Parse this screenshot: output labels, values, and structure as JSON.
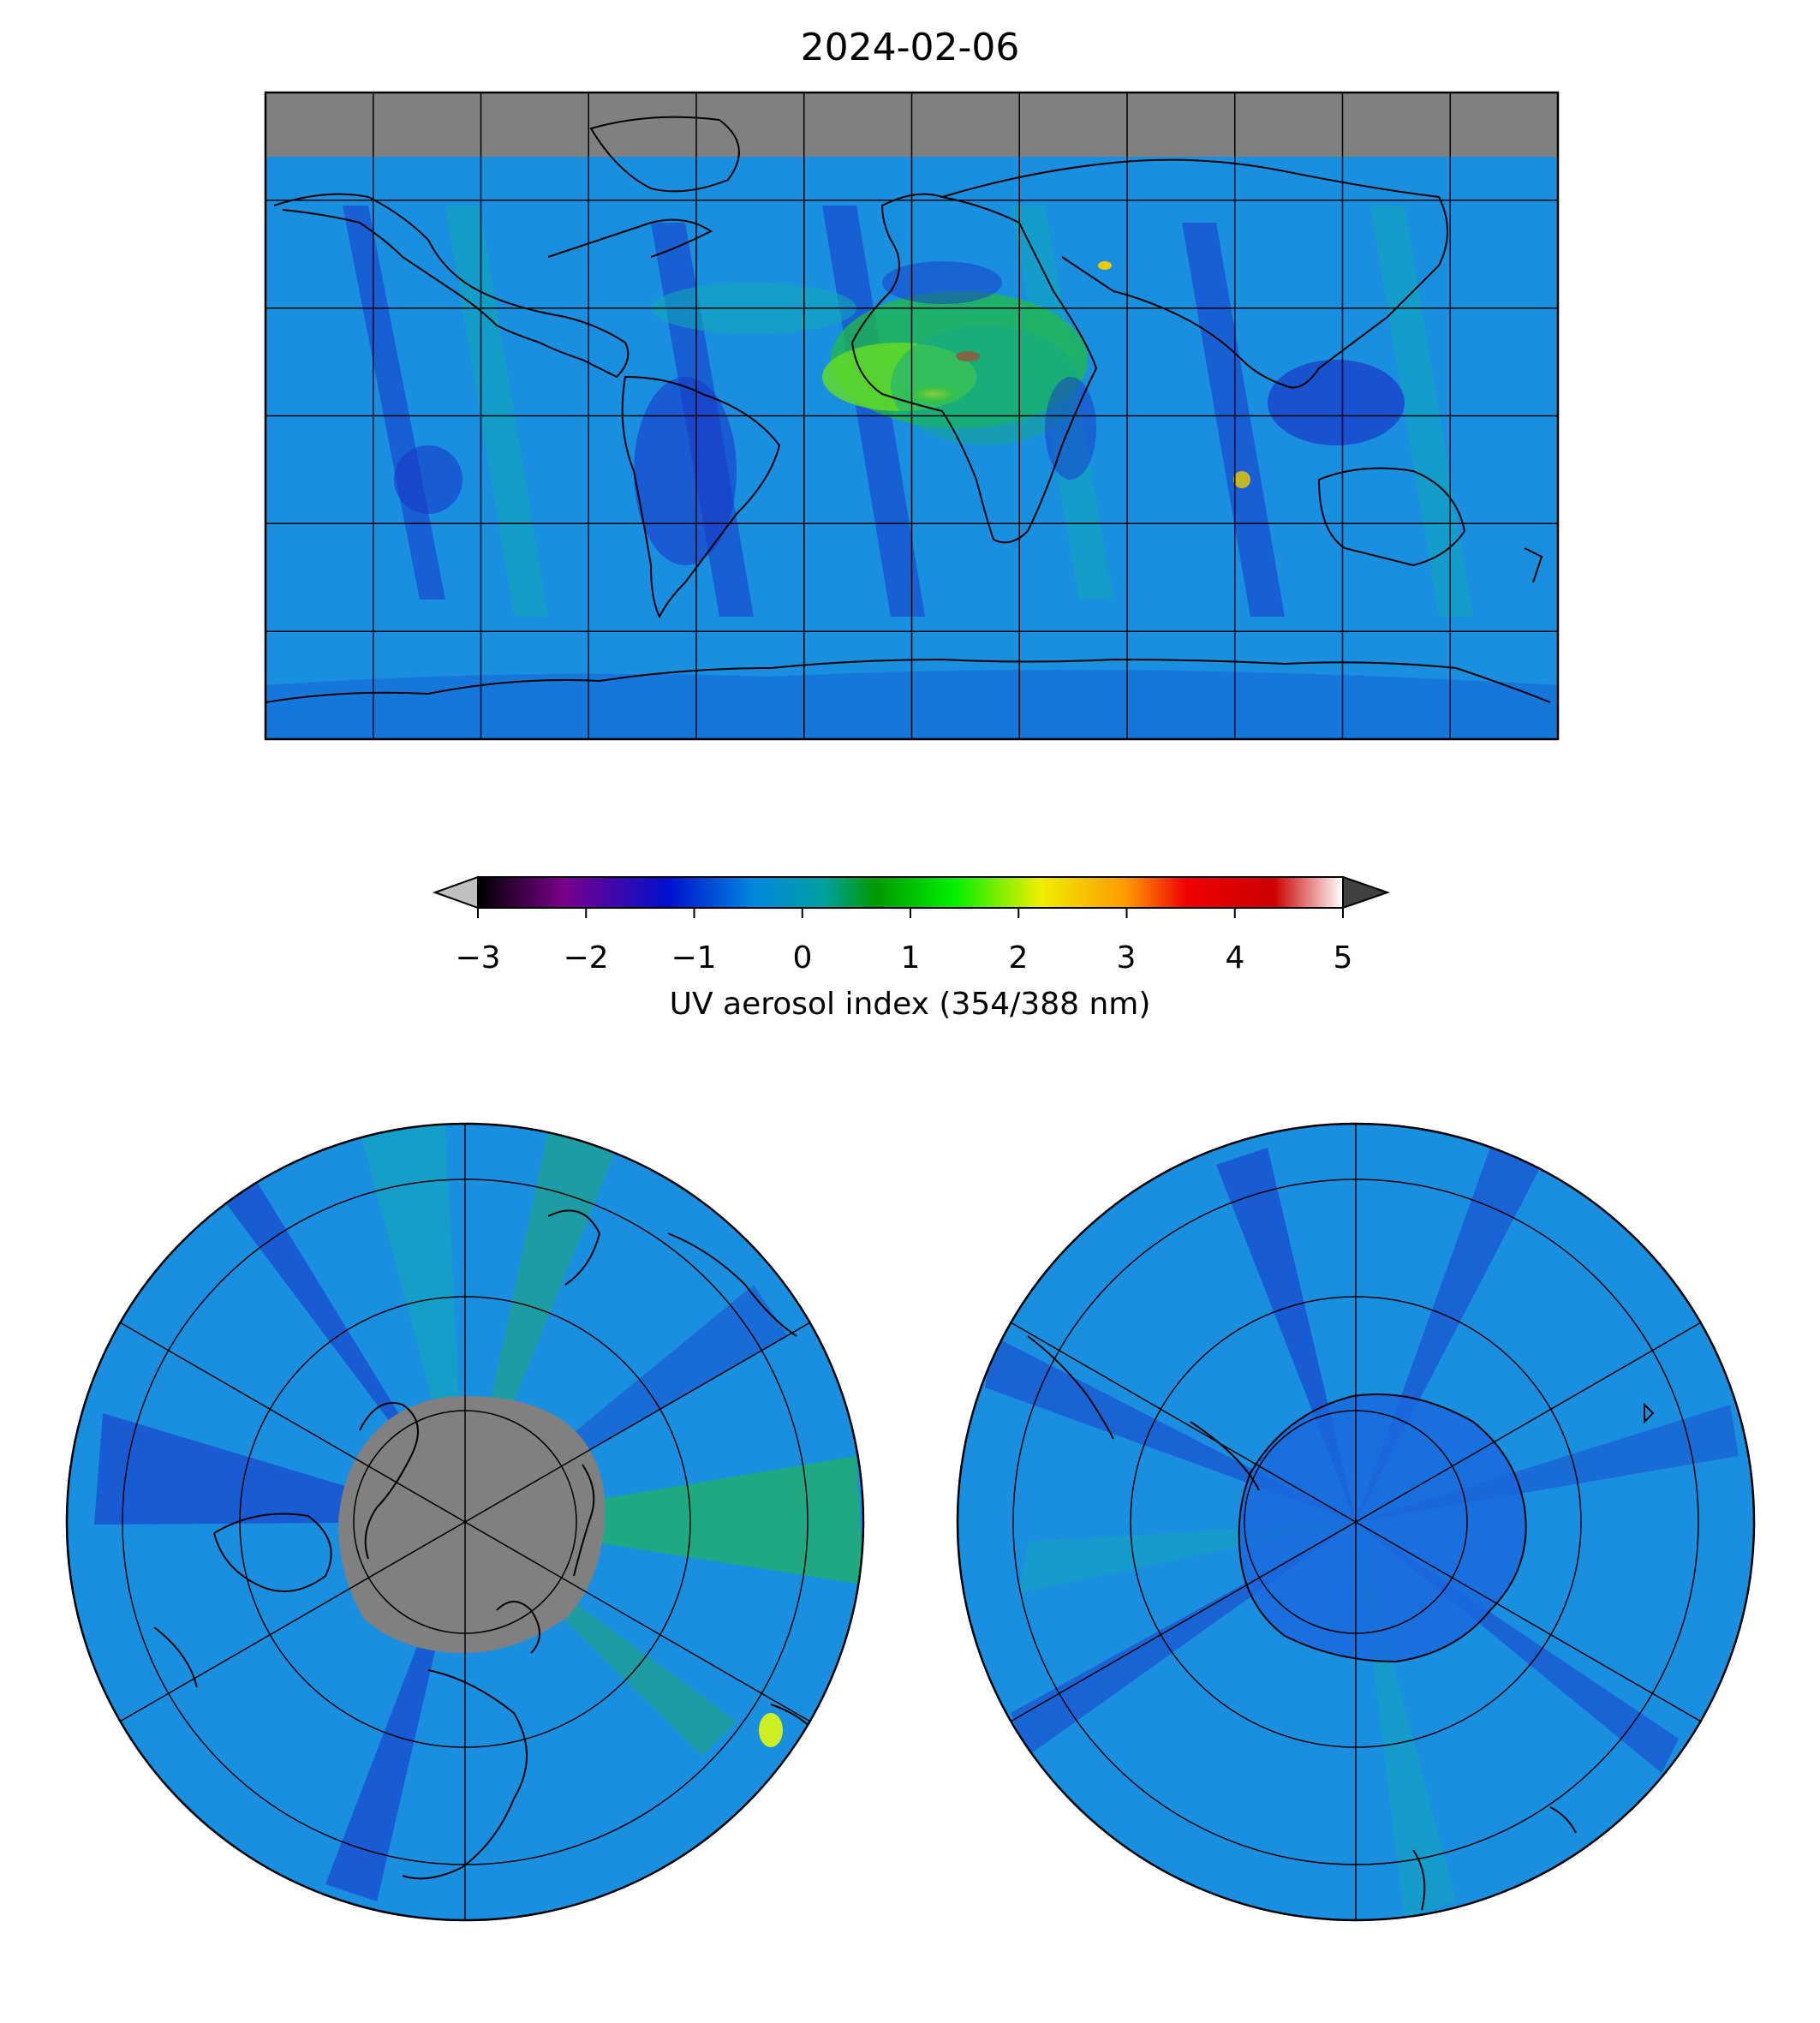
{
  "figure": {
    "title": "2024-02-06",
    "colorbar": {
      "label": "UV aerosol index (354/388 nm)",
      "ticks": [
        "−3",
        "−2",
        "−1",
        "0",
        "1",
        "2",
        "3",
        "4",
        "5"
      ],
      "range": [
        -3,
        5
      ],
      "extend": "both",
      "under_color": "#c0c0c0",
      "over_color": "#404040",
      "colormap": [
        "#000000",
        "#7a008a",
        "#0010cc",
        "#0088dd",
        "#00a0a0",
        "#009900",
        "#00ee00",
        "#eeee00",
        "#ff9900",
        "#ee0000",
        "#cc0000",
        "#ffffff"
      ]
    },
    "maps": [
      {
        "name": "global",
        "projection": "plate-carree",
        "missing_color": "#808080",
        "background": "#1a8fe0"
      },
      {
        "name": "north-polar",
        "projection": "north-polar-stereographic",
        "missing_color": "#808080"
      },
      {
        "name": "south-polar",
        "projection": "south-polar-stereographic"
      }
    ]
  }
}
